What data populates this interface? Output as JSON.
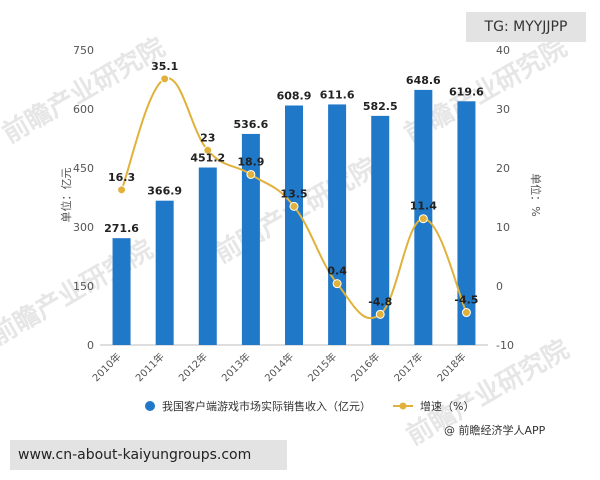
{
  "overlay": {
    "tg_badge": "TG: MYYJJPP",
    "url_banner": "www.cn-about-kaiyungroups.com"
  },
  "source": "@ 前瞻经济学人APP",
  "watermark": "前瞻产业研究院",
  "chart_data": {
    "type": "bar",
    "title": "",
    "categories": [
      "2010年",
      "2011年",
      "2012年",
      "2013年",
      "2014年",
      "2015年",
      "2016年",
      "2017年",
      "2018年"
    ],
    "ylabel_left": "单位：亿元",
    "ylabel_right": "单位：%",
    "ylim_left": [
      0,
      750
    ],
    "yticks_left": [
      0,
      150,
      300,
      450,
      600,
      750
    ],
    "ylim_right": [
      -10,
      40
    ],
    "yticks_right": [
      -10,
      0,
      10,
      20,
      30,
      40
    ],
    "grid": false,
    "legend_position": "bottom",
    "series": [
      {
        "name": "我国客户端游戏市场实际销售收入（亿元）",
        "type": "bar",
        "axis": "left",
        "color": "#1f78c8",
        "values": [
          271.6,
          366.9,
          451.2,
          536.6,
          608.9,
          611.6,
          582.5,
          648.6,
          619.6
        ],
        "labels": [
          "271.6",
          "366.9",
          "451.2",
          "536.6",
          "608.9",
          "611.6",
          "582.5",
          "648.6",
          "619.6"
        ]
      },
      {
        "name": "增速（%）",
        "type": "line",
        "axis": "right",
        "color": "#e0b23c",
        "values": [
          16.3,
          35.1,
          23,
          18.9,
          13.5,
          0.4,
          -4.8,
          11.4,
          -4.5
        ],
        "labels": [
          "16.3",
          "35.1",
          "23",
          "18.9",
          "13.5",
          "0.4",
          "-4.8",
          "11.4",
          "-4.5"
        ]
      }
    ]
  }
}
